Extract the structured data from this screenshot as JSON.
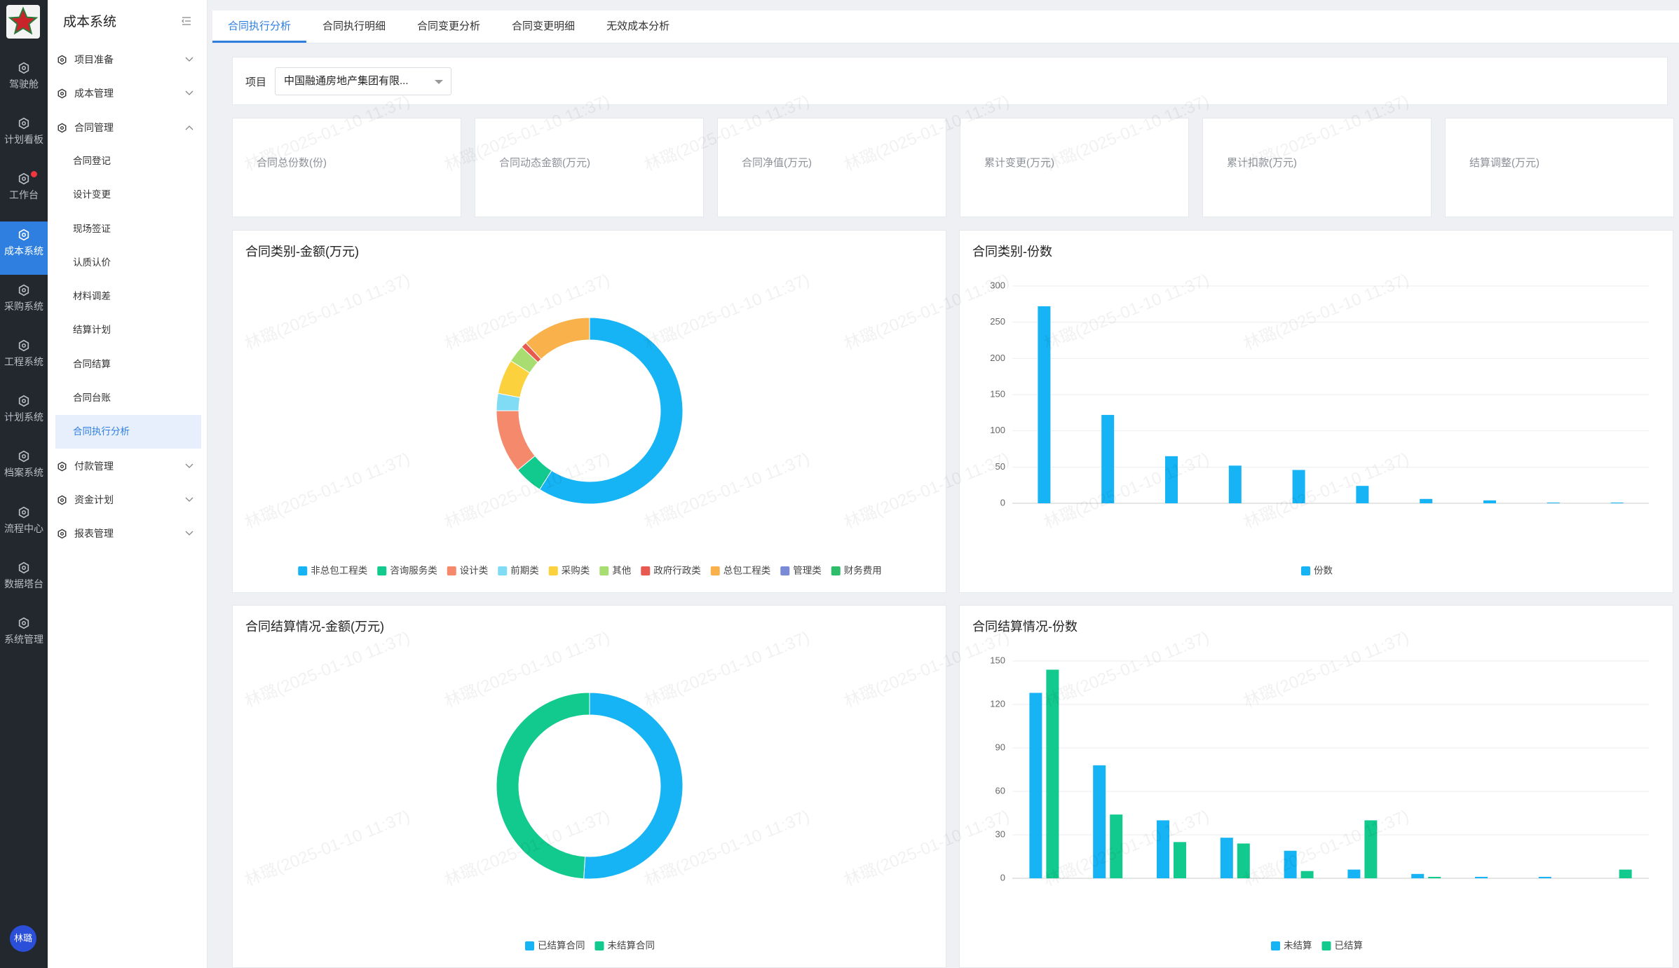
{
  "rail": {
    "items": [
      "驾驶舱",
      "计划看板",
      "工作台",
      "成本系统",
      "采购系统",
      "工程系统",
      "计划系统",
      "档案系统",
      "流程中心",
      "数据塔台",
      "系统管理"
    ],
    "active": 3,
    "badge": 2,
    "avatar": "林璐"
  },
  "menu": {
    "title": "成本系统",
    "groups": [
      {
        "label": "项目准备"
      },
      {
        "label": "成本管理"
      },
      {
        "label": "合同管理",
        "children": [
          "合同登记",
          "设计变更",
          "现场签证",
          "认质认价",
          "材料调差",
          "结算计划",
          "合同结算",
          "合同台账",
          "合同执行分析"
        ],
        "active": 8
      },
      {
        "label": "付款管理"
      },
      {
        "label": "资金计划"
      },
      {
        "label": "报表管理"
      }
    ]
  },
  "tabs": {
    "items": [
      "合同执行分析",
      "合同执行明细",
      "合同变更分析",
      "合同变更明细",
      "无效成本分析"
    ],
    "active": 0
  },
  "filter": {
    "label": "项目",
    "value": "中国融通房地产集团有限..."
  },
  "kpis": [
    {
      "label": "合同总份数(份)"
    },
    {
      "label": "合同动态金额(万元)"
    },
    {
      "label": "合同净值(万元)"
    },
    {
      "label": "累计变更(万元)"
    },
    {
      "label": "累计扣款(万元)"
    },
    {
      "label": "结算调整(万元)"
    }
  ],
  "watermark": "林璐(2025-01-10 11:37)",
  "chart_data": [
    {
      "type": "donut",
      "title": "合同类别-金额(万元)",
      "categories": [
        "非总包工程类",
        "咨询服务类",
        "设计类",
        "前期类",
        "采购类",
        "其他",
        "政府行政类",
        "总包工程类",
        "管理类",
        "财务费用"
      ],
      "values": [
        59,
        5,
        11,
        3,
        6,
        3,
        1,
        12,
        0,
        0
      ],
      "colors": [
        "#16b4f4",
        "#12c98e",
        "#f5896b",
        "#7fdcf4",
        "#fbd13e",
        "#a8dd72",
        "#e8594f",
        "#f9b24b",
        "#7b8ad6",
        "#2dbd6b"
      ]
    },
    {
      "type": "bar",
      "title": "合同类别-份数",
      "categories": [
        null,
        null,
        null,
        null,
        null,
        null,
        null,
        null,
        null,
        null
      ],
      "series": [
        {
          "name": "份数",
          "color": "#16b4f4",
          "values": [
            272,
            122,
            65,
            52,
            46,
            24,
            6,
            4,
            1,
            1
          ]
        }
      ],
      "ylim": [
        0,
        300
      ],
      "yticks": [
        0,
        50,
        100,
        150,
        200,
        250,
        300
      ],
      "grid": true
    },
    {
      "type": "donut",
      "title": "合同结算情况-金额(万元)",
      "categories": [
        "已结算合同",
        "未结算合同"
      ],
      "values": [
        51,
        49
      ],
      "colors": [
        "#16b4f4",
        "#12c98e"
      ]
    },
    {
      "type": "bar",
      "title": "合同结算情况-份数",
      "categories": [
        null,
        null,
        null,
        null,
        null,
        null,
        null,
        null,
        null,
        null
      ],
      "series": [
        {
          "name": "未结算",
          "color": "#16b4f4",
          "values": [
            128,
            78,
            40,
            28,
            19,
            6,
            3,
            1,
            1,
            0
          ]
        },
        {
          "name": "已结算",
          "color": "#12c98e",
          "values": [
            144,
            44,
            25,
            24,
            5,
            40,
            1,
            0,
            0,
            6
          ]
        }
      ],
      "ylim": [
        0,
        150
      ],
      "yticks": [
        0,
        30,
        60,
        90,
        120,
        150
      ],
      "grid": true
    }
  ]
}
